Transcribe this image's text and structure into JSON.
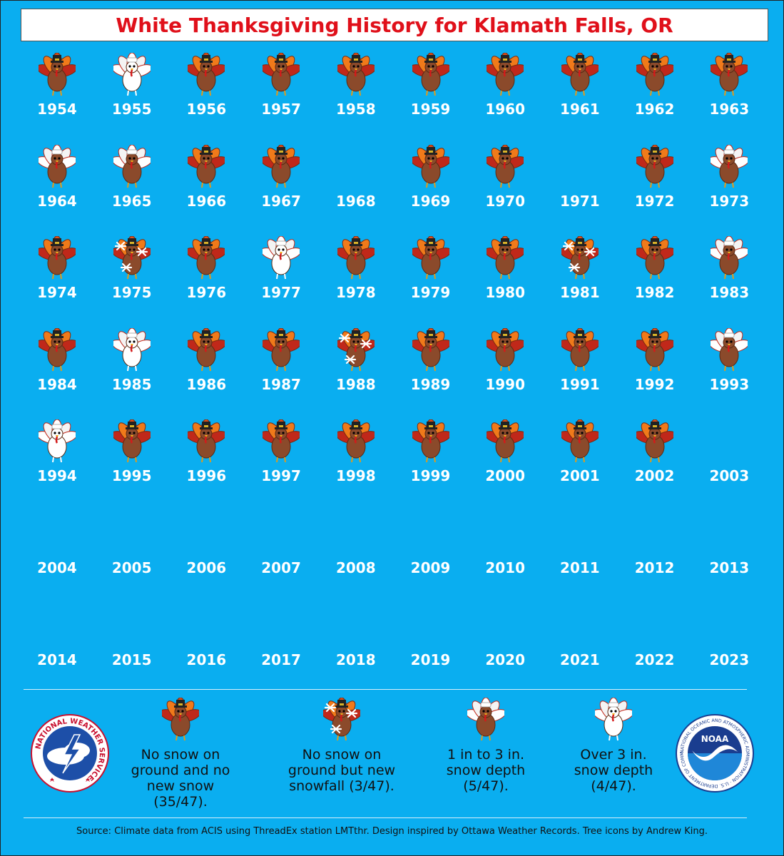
{
  "title": "White Thanksgiving History for Klamath Falls, OR",
  "colors": {
    "background": "#0aaef0",
    "title": "#e0101a",
    "turkey_body": "#8b4a2b",
    "turkey_feather_red": "#c0281a",
    "turkey_feather_orange": "#f07a1a",
    "snow_white": "#ffffff"
  },
  "categories": {
    "none": "No snow on ground and no new snow (35/47).",
    "new": "No snow on ground but new snowfall (3/47).",
    "light": "1 in to 3 in. snow depth (5/47).",
    "heavy": "Over 3 in. snow depth (4/47)."
  },
  "years": [
    {
      "year": "1954",
      "cat": "none"
    },
    {
      "year": "1955",
      "cat": "heavy"
    },
    {
      "year": "1956",
      "cat": "none"
    },
    {
      "year": "1957",
      "cat": "none"
    },
    {
      "year": "1958",
      "cat": "none"
    },
    {
      "year": "1959",
      "cat": "none"
    },
    {
      "year": "1960",
      "cat": "none"
    },
    {
      "year": "1961",
      "cat": "none"
    },
    {
      "year": "1962",
      "cat": "none"
    },
    {
      "year": "1963",
      "cat": "none"
    },
    {
      "year": "1964",
      "cat": "light"
    },
    {
      "year": "1965",
      "cat": "light"
    },
    {
      "year": "1966",
      "cat": "none"
    },
    {
      "year": "1967",
      "cat": "none"
    },
    {
      "year": "1968",
      "cat": ""
    },
    {
      "year": "1969",
      "cat": "none"
    },
    {
      "year": "1970",
      "cat": "none"
    },
    {
      "year": "1971",
      "cat": ""
    },
    {
      "year": "1972",
      "cat": "none"
    },
    {
      "year": "1973",
      "cat": "light"
    },
    {
      "year": "1974",
      "cat": "none"
    },
    {
      "year": "1975",
      "cat": "new"
    },
    {
      "year": "1976",
      "cat": "none"
    },
    {
      "year": "1977",
      "cat": "heavy"
    },
    {
      "year": "1978",
      "cat": "none"
    },
    {
      "year": "1979",
      "cat": "none"
    },
    {
      "year": "1980",
      "cat": "none"
    },
    {
      "year": "1981",
      "cat": "new"
    },
    {
      "year": "1982",
      "cat": "none"
    },
    {
      "year": "1983",
      "cat": "light"
    },
    {
      "year": "1984",
      "cat": "none"
    },
    {
      "year": "1985",
      "cat": "heavy"
    },
    {
      "year": "1986",
      "cat": "none"
    },
    {
      "year": "1987",
      "cat": "none"
    },
    {
      "year": "1988",
      "cat": "new"
    },
    {
      "year": "1989",
      "cat": "none"
    },
    {
      "year": "1990",
      "cat": "none"
    },
    {
      "year": "1991",
      "cat": "none"
    },
    {
      "year": "1992",
      "cat": "none"
    },
    {
      "year": "1993",
      "cat": "light"
    },
    {
      "year": "1994",
      "cat": "heavy"
    },
    {
      "year": "1995",
      "cat": "none"
    },
    {
      "year": "1996",
      "cat": "none"
    },
    {
      "year": "1997",
      "cat": "none"
    },
    {
      "year": "1998",
      "cat": "none"
    },
    {
      "year": "1999",
      "cat": "none"
    },
    {
      "year": "2000",
      "cat": "none"
    },
    {
      "year": "2001",
      "cat": "none"
    },
    {
      "year": "2002",
      "cat": "none"
    },
    {
      "year": "2003",
      "cat": ""
    },
    {
      "year": "2004",
      "cat": ""
    },
    {
      "year": "2005",
      "cat": ""
    },
    {
      "year": "2006",
      "cat": ""
    },
    {
      "year": "2007",
      "cat": ""
    },
    {
      "year": "2008",
      "cat": ""
    },
    {
      "year": "2009",
      "cat": ""
    },
    {
      "year": "2010",
      "cat": ""
    },
    {
      "year": "2011",
      "cat": ""
    },
    {
      "year": "2012",
      "cat": ""
    },
    {
      "year": "2013",
      "cat": ""
    },
    {
      "year": "2014",
      "cat": ""
    },
    {
      "year": "2015",
      "cat": ""
    },
    {
      "year": "2016",
      "cat": ""
    },
    {
      "year": "2017",
      "cat": ""
    },
    {
      "year": "2018",
      "cat": ""
    },
    {
      "year": "2019",
      "cat": ""
    },
    {
      "year": "2020",
      "cat": ""
    },
    {
      "year": "2021",
      "cat": ""
    },
    {
      "year": "2022",
      "cat": ""
    },
    {
      "year": "2023",
      "cat": ""
    }
  ],
  "legend": [
    {
      "cat": "none",
      "label": "No snow on ground and no new snow (35/47)."
    },
    {
      "cat": "new",
      "label": "No snow on ground but new snowfall (3/47)."
    },
    {
      "cat": "light",
      "label": "1 in to 3 in. snow depth (5/47)."
    },
    {
      "cat": "heavy",
      "label": "Over 3 in. snow depth (4/47)."
    }
  ],
  "logos": {
    "nws": {
      "icon": "nws-logo",
      "text": "NATIONAL WEATHER SERVICE"
    },
    "noaa": {
      "icon": "noaa-logo",
      "text": "NOAA",
      "ring_text": "NATIONAL OCEANIC AND ATMOSPHERIC ADMINISTRATION · U.S. DEPARTMENT OF COMMERCE"
    }
  },
  "source": "Source: Climate data from ACIS using ThreadEx station LMTthr. Design inspired by Ottawa Weather Records. Tree icons by Andrew King."
}
